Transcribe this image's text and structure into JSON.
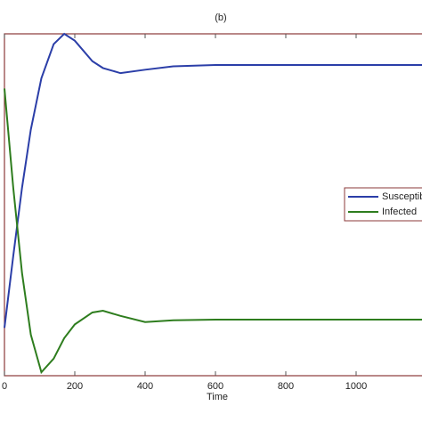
{
  "chart_data": {
    "type": "line",
    "title": "(b)",
    "x_label": "Time",
    "x": [
      0,
      25,
      50,
      75,
      105,
      140,
      170,
      200,
      250,
      280,
      330,
      400,
      480,
      600,
      800,
      1000,
      1200
    ],
    "series": [
      {
        "name": "Susceptible",
        "color": "#2b3ea8",
        "values": [
          0.14,
          0.35,
          0.55,
          0.72,
          0.87,
          0.97,
          1.0,
          0.98,
          0.92,
          0.9,
          0.885,
          0.895,
          0.905,
          0.909,
          0.909,
          0.909,
          0.909
        ]
      },
      {
        "name": "Infected",
        "color": "#2e7d1e",
        "values": [
          0.84,
          0.55,
          0.3,
          0.12,
          0.01,
          0.05,
          0.11,
          0.15,
          0.185,
          0.19,
          0.175,
          0.157,
          0.162,
          0.164,
          0.164,
          0.164,
          0.164
        ]
      }
    ],
    "xlim": [
      0,
      1200
    ],
    "xticks": [
      0,
      200,
      400,
      600,
      800,
      1000
    ],
    "ylim": [
      0,
      1
    ]
  }
}
